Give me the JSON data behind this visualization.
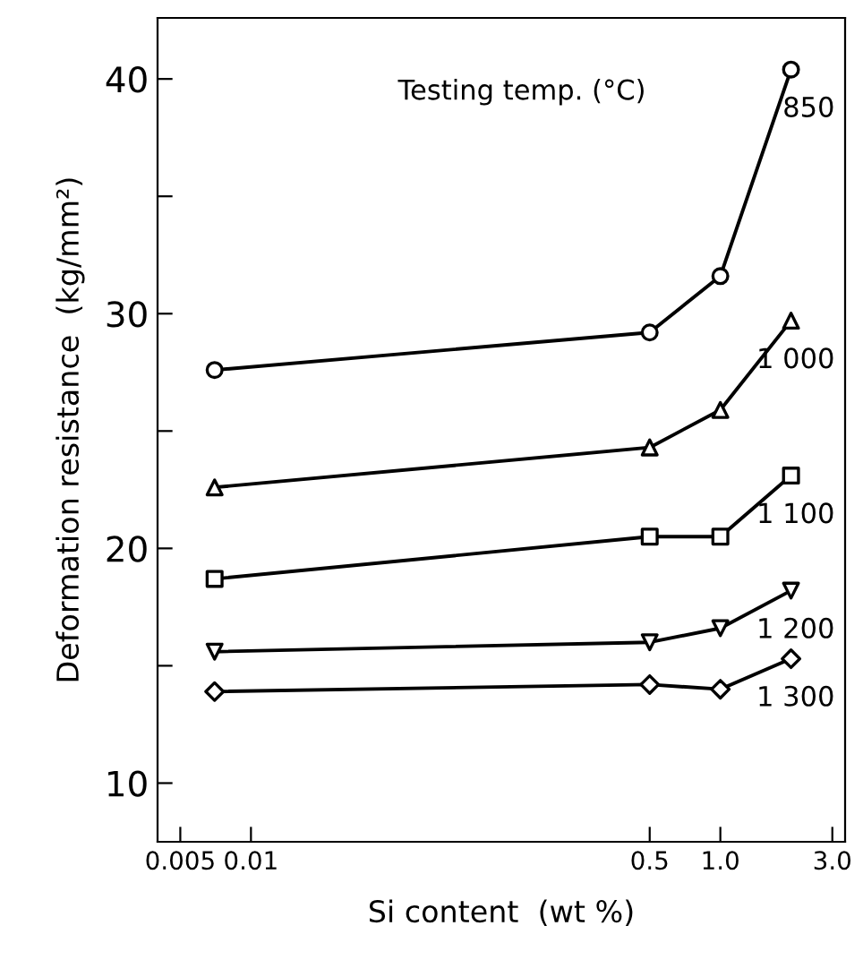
{
  "chart_data": {
    "type": "line",
    "xlabel": "Si content  (wt %)",
    "ylabel": "Deformation resistance  (kg/mm²)",
    "x": [
      0.007,
      0.5,
      1.0,
      2.0
    ],
    "series": [
      {
        "name": "850",
        "color": "#000000",
        "marker": "circle",
        "values": [
          27.6,
          29.2,
          31.6,
          40.4
        ]
      },
      {
        "name": "1 000",
        "color": "#000000",
        "marker": "triangle",
        "values": [
          22.6,
          24.3,
          25.9,
          29.7
        ]
      },
      {
        "name": "1 100",
        "color": "#000000",
        "marker": "square",
        "values": [
          18.7,
          20.5,
          20.5,
          23.1
        ]
      },
      {
        "name": "1 200",
        "color": "#000000",
        "marker": "triangle_down",
        "values": [
          15.6,
          16.0,
          16.6,
          18.2
        ]
      },
      {
        "name": "1 300",
        "color": "#000000",
        "marker": "diamond",
        "values": [
          13.9,
          14.2,
          14.0,
          15.3
        ]
      }
    ],
    "annotations": [
      "Testing temp. (°C)"
    ],
    "log": "x",
    "xlim": [
      0.004,
      3.4
    ],
    "xticks": [
      0.005,
      0.01,
      0.5,
      {
        "value": 1,
        "label": "1.0"
      },
      {
        "value": 3,
        "label": "3.0"
      }
    ],
    "ylim": [
      7.5,
      42.6
    ],
    "yticks": [
      10,
      {
        "value": 15,
        "label": null
      },
      20,
      {
        "value": 25,
        "label": null
      },
      30,
      {
        "value": 35,
        "label": null
      },
      40
    ],
    "grid": false,
    "legend": false,
    "line_style": "solid"
  }
}
